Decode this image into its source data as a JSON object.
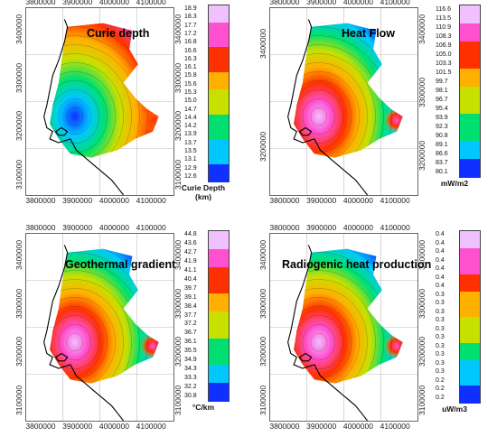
{
  "figure": {
    "panels": [
      {
        "id": "curie-depth",
        "title": "Curie depth",
        "x_ticks": [
          "3800000",
          "3900000",
          "4000000",
          "4100000"
        ],
        "y_ticks": [
          "3400000",
          "3300000",
          "3200000",
          "3100000"
        ],
        "y_ticks_right": [
          "3400000",
          "3300000",
          "3200000",
          "3100000"
        ],
        "colorbar": {
          "labels": [
            "18.9",
            "18.3",
            "17.7",
            "17.2",
            "16.8",
            "16.6",
            "16.3",
            "16.1",
            "15.8",
            "15.6",
            "15.3",
            "15.0",
            "14.7",
            "14.4",
            "14.2",
            "13.9",
            "13.7",
            "13.5",
            "13.1",
            "12.9",
            "12.6"
          ],
          "unit": "Curie Depth (km)"
        },
        "hotspot": "low-value",
        "colors": [
          "#1030ff",
          "#00c8ff",
          "#00e070",
          "#c8e000",
          "#ffb000",
          "#ff3000",
          "#ff50d0",
          "#f0c0ff"
        ]
      },
      {
        "id": "heat-flow",
        "title": "Heat Flow",
        "x_ticks": [
          "3800000",
          "3900000",
          "4000000",
          "4100000"
        ],
        "y_ticks": [
          "3400000",
          "3200000"
        ],
        "y_ticks_right": [
          "3400000",
          "3300000",
          "3200000"
        ],
        "colorbar": {
          "labels": [
            "116.6",
            "113.5",
            "110.9",
            "108.3",
            "106.9",
            "105.0",
            "103.3",
            "101.5",
            "99.7",
            "98.1",
            "96.7",
            "95.4",
            "93.9",
            "92.3",
            "90.8",
            "89.1",
            "86.6",
            "83.7",
            "80.1"
          ],
          "unit": "mW/m2"
        },
        "hotspot": "high-value",
        "colors": [
          "#1030ff",
          "#00c8ff",
          "#00e070",
          "#c8e000",
          "#ffb000",
          "#ff3000",
          "#ff50d0",
          "#f0c0ff"
        ]
      },
      {
        "id": "geothermal-gradient",
        "title": "Geothermal gradient",
        "x_ticks": [
          "3800000",
          "3900000",
          "4000000",
          "4100000"
        ],
        "y_ticks": [
          "3400000",
          "3300000",
          "3200000",
          "3100000"
        ],
        "y_ticks_right": [
          "3400000",
          "3300000",
          "3200000",
          "3100000"
        ],
        "colorbar": {
          "labels": [
            "44.8",
            "43.6",
            "42.7",
            "41.9",
            "41.1",
            "40.4",
            "39.7",
            "39.1",
            "38.4",
            "37.7",
            "37.2",
            "36.7",
            "36.1",
            "35.5",
            "34.9",
            "34.3",
            "33.3",
            "32.2",
            "30.8"
          ],
          "unit": "°C/km"
        },
        "hotspot": "high-value",
        "colors": [
          "#1030ff",
          "#00c8ff",
          "#00e070",
          "#c8e000",
          "#ffb000",
          "#ff3000",
          "#ff50d0",
          "#f0c0ff"
        ]
      },
      {
        "id": "radiogenic-heat",
        "title": "Radiogenic heat production",
        "x_ticks": [
          "3800000",
          "3900000",
          "4000000",
          "4100000"
        ],
        "y_ticks": [
          "3400000",
          "3300000",
          "3200000",
          "3100000"
        ],
        "y_ticks_right": [
          "3400000",
          "3300000",
          "3200000",
          "3100000"
        ],
        "colorbar": {
          "labels": [
            "0.4",
            "0.4",
            "0.4",
            "0.4",
            "0.4",
            "0.4",
            "0.4",
            "0.3",
            "0.3",
            "0.3",
            "0.3",
            "0.3",
            "0.3",
            "0.3",
            "0.3",
            "0.3",
            "0.3",
            "0.2",
            "0.2",
            "0.2"
          ],
          "unit": "uW/m3"
        },
        "hotspot": "high-value",
        "colors": [
          "#1030ff",
          "#00c8ff",
          "#00e070",
          "#c8e000",
          "#ffb000",
          "#ff3000",
          "#ff50d0",
          "#f0c0ff"
        ]
      }
    ]
  }
}
